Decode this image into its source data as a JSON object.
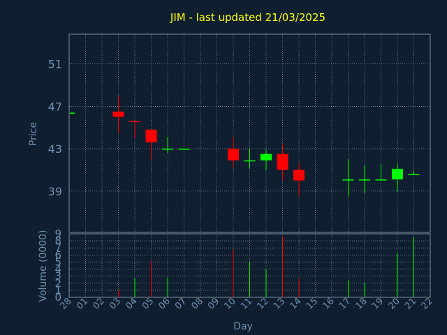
{
  "chart_title": "JIM - last updated 21/03/2025",
  "colors": {
    "background": "#0f1f30",
    "panel_border": "#7f8fa0",
    "grid": "#aab4c0",
    "title": "#ffff00",
    "tick_text": "#7090b0",
    "up": "#00ff00",
    "down": "#ff0000"
  },
  "chart_data": [
    {
      "type": "candlestick",
      "title": "JIM - last updated 21/03/2025",
      "ylabel": "Price",
      "xlabel": "Day",
      "x_ticks": [
        "28",
        "01",
        "02",
        "03",
        "04",
        "05",
        "06",
        "07",
        "08",
        "09",
        "10",
        "11",
        "12",
        "13",
        "14",
        "15",
        "16",
        "17",
        "18",
        "19",
        "20",
        "21",
        "22"
      ],
      "y_ticks": [
        39,
        43,
        47,
        51
      ],
      "ylim": [
        35.1,
        53.8
      ],
      "grid": true,
      "candles": [
        {
          "day": "28",
          "open": 46.4,
          "high": 46.4,
          "low": 46.4,
          "close": 46.4
        },
        {
          "day": "03",
          "open": 46.5,
          "high": 48.0,
          "low": 44.5,
          "close": 46.0
        },
        {
          "day": "04",
          "open": 45.6,
          "high": 45.6,
          "low": 44.0,
          "close": 45.5
        },
        {
          "day": "05",
          "open": 44.8,
          "high": 44.8,
          "low": 42.0,
          "close": 43.6
        },
        {
          "day": "06",
          "open": 42.9,
          "high": 44.1,
          "low": 42.6,
          "close": 43.0
        },
        {
          "day": "07",
          "open": 42.9,
          "high": 43.0,
          "low": 42.9,
          "close": 43.0
        },
        {
          "day": "10",
          "open": 43.0,
          "high": 44.1,
          "low": 41.2,
          "close": 41.9
        },
        {
          "day": "11",
          "open": 41.8,
          "high": 43.0,
          "low": 41.1,
          "close": 41.9
        },
        {
          "day": "12",
          "open": 41.9,
          "high": 42.9,
          "low": 41.0,
          "close": 42.5
        },
        {
          "day": "13",
          "open": 42.5,
          "high": 43.4,
          "low": 40.0,
          "close": 41.0
        },
        {
          "day": "14",
          "open": 41.0,
          "high": 41.6,
          "low": 38.5,
          "close": 40.0
        },
        {
          "day": "17",
          "open": 40.0,
          "high": 42.0,
          "low": 38.5,
          "close": 40.1
        },
        {
          "day": "18",
          "open": 40.0,
          "high": 41.4,
          "low": 38.8,
          "close": 40.1
        },
        {
          "day": "19",
          "open": 40.0,
          "high": 41.5,
          "low": 40.0,
          "close": 40.1
        },
        {
          "day": "20",
          "open": 40.1,
          "high": 41.6,
          "low": 39.0,
          "close": 41.1
        },
        {
          "day": "21",
          "open": 40.5,
          "high": 40.9,
          "low": 40.5,
          "close": 40.6
        }
      ]
    },
    {
      "type": "bar",
      "ylabel": "Volume (0000)",
      "xlabel": "Day",
      "y_ticks": [
        0,
        1,
        2,
        3,
        4,
        5,
        6,
        7,
        8,
        9
      ],
      "ylim": [
        0,
        9
      ],
      "grid": true,
      "bars": [
        {
          "day": "03",
          "value": 1.0,
          "direction": "down"
        },
        {
          "day": "04",
          "value": 2.8,
          "direction": "up"
        },
        {
          "day": "05",
          "value": 5.2,
          "direction": "down"
        },
        {
          "day": "06",
          "value": 2.8,
          "direction": "up"
        },
        {
          "day": "10",
          "value": 6.8,
          "direction": "down"
        },
        {
          "day": "11",
          "value": 5.0,
          "direction": "up"
        },
        {
          "day": "12",
          "value": 4.0,
          "direction": "up"
        },
        {
          "day": "13",
          "value": 8.7,
          "direction": "down"
        },
        {
          "day": "14",
          "value": 2.7,
          "direction": "down"
        },
        {
          "day": "17",
          "value": 2.4,
          "direction": "up"
        },
        {
          "day": "18",
          "value": 2.1,
          "direction": "up"
        },
        {
          "day": "20",
          "value": 6.3,
          "direction": "up"
        },
        {
          "day": "21",
          "value": 8.5,
          "direction": "up"
        }
      ]
    }
  ]
}
